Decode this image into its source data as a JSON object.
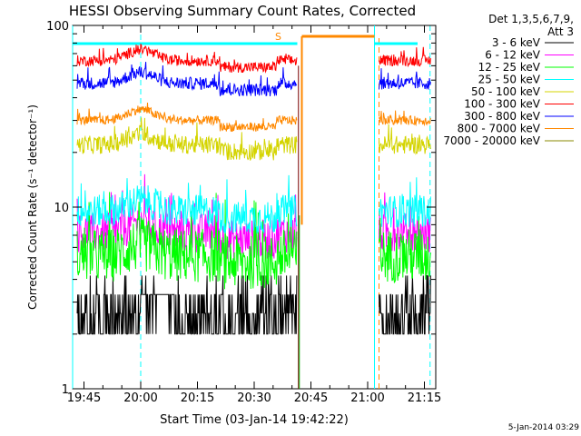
{
  "chart_data": {
    "type": "line",
    "title": "HESSI Observing Summary Count Rates, Corrected",
    "xlabel": "Start Time (03-Jan-14 19:42:22)",
    "ylabel": "Corrected Count Rate (s⁻¹ detector⁻¹)",
    "yscale": "log",
    "ylim": [
      1,
      100
    ],
    "xlim_minutes": [
      19.7,
      21.3
    ],
    "x_ticks": [
      "19:45",
      "20:00",
      "20:15",
      "20:30",
      "20:45",
      "21:00",
      "21:15"
    ],
    "y_ticks": [
      "1",
      "10",
      "100"
    ],
    "legend_header": [
      "Det 1,3,5,6,7,9,",
      "Att 3"
    ],
    "legend_position": "right",
    "footer_date": "5-Jan-2014 03:29",
    "saa_marker": "S",
    "series": [
      {
        "name": "3 - 6 keV",
        "color": "#000000",
        "level": 2.6,
        "noise": 0.55,
        "gap": [
          20.0,
          20.15
        ]
      },
      {
        "name": "6 - 12 keV",
        "color": "#ff00ff",
        "level": 7.2,
        "noise": 0.22
      },
      {
        "name": "12 - 25 keV",
        "color": "#00ff00",
        "level": 5.4,
        "noise": 0.3
      },
      {
        "name": "25 - 50 keV",
        "color": "#00ffff",
        "level": 9.5,
        "noise": 0.18
      },
      {
        "name": "50 - 100 keV",
        "color": "#d4d400",
        "level": 22.0,
        "noise": 0.1
      },
      {
        "name": "100 - 300 keV",
        "color": "#ff0000",
        "level": 64.0,
        "noise": 0.06
      },
      {
        "name": "300 - 800 keV",
        "color": "#0000ff",
        "level": 48.0,
        "noise": 0.07
      },
      {
        "name": "800 - 7000 keV",
        "color": "#ff8800",
        "level": 30.0,
        "noise": 0.05
      },
      {
        "name": "7000 - 20000 keV",
        "color": "#888800",
        "level": null
      }
    ],
    "night_intervals": [
      [
        19.7,
        20.69
      ],
      [
        21.03,
        21.28
      ]
    ],
    "saa_interval": [
      20.71,
      21.03
    ]
  }
}
